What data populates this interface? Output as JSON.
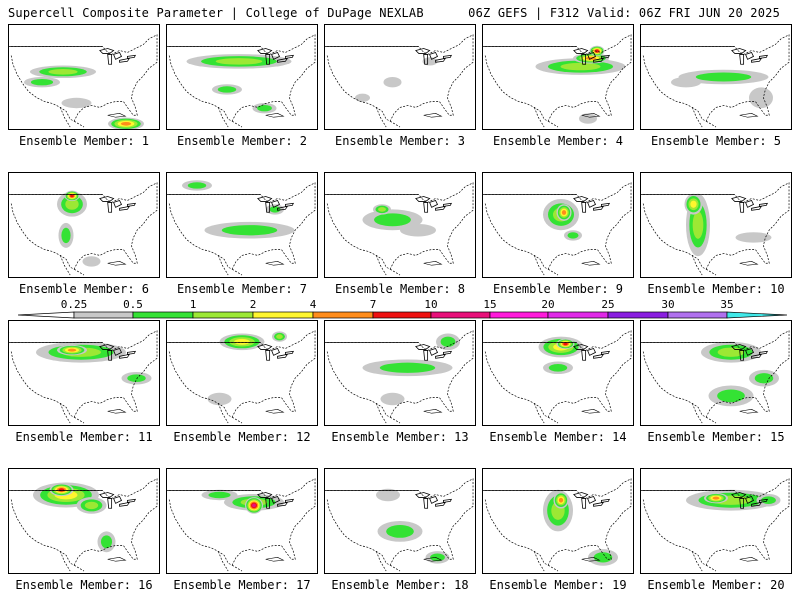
{
  "header": {
    "title": "Supercell Composite Parameter | College of DuPage NEXLAB",
    "run_info": "06Z GEFS | F312 Valid: 06Z FRI JUN 20 2025"
  },
  "colorbar": {
    "labels": [
      "0.25",
      "0.5",
      "1",
      "2",
      "4",
      "7",
      "10",
      "15",
      "20",
      "25",
      "30",
      "35"
    ],
    "colors": [
      "#ffffff",
      "#c8c8c8",
      "#34e234",
      "#9ce834",
      "#fff62e",
      "#ff8c1a",
      "#ee1111",
      "#e8107a",
      "#ff1adb",
      "#e028e8",
      "#8a1ee0",
      "#b070ee",
      "#40e8e8"
    ]
  },
  "panel_label_prefix": "Ensemble Member:",
  "members": [
    {
      "label": "Ensemble Member: 1",
      "intensity": "moderate",
      "blobs": [
        [
          0.36,
          0.45,
          0.22,
          0.06,
          3
        ],
        [
          0.22,
          0.55,
          0.12,
          0.05,
          2
        ],
        [
          0.78,
          0.95,
          0.12,
          0.06,
          5
        ],
        [
          0.45,
          0.75,
          0.1,
          0.05,
          1
        ]
      ]
    },
    {
      "label": "Ensemble Member: 2",
      "intensity": "moderate",
      "blobs": [
        [
          0.48,
          0.35,
          0.35,
          0.07,
          3
        ],
        [
          0.4,
          0.62,
          0.1,
          0.05,
          2
        ],
        [
          0.65,
          0.8,
          0.08,
          0.05,
          2
        ]
      ]
    },
    {
      "label": "Ensemble Member: 3",
      "intensity": "low",
      "blobs": [
        [
          0.45,
          0.55,
          0.06,
          0.05,
          1
        ],
        [
          0.7,
          0.35,
          0.05,
          0.04,
          1
        ],
        [
          0.25,
          0.7,
          0.05,
          0.04,
          1
        ]
      ]
    },
    {
      "label": "Ensemble Member: 4",
      "intensity": "high",
      "blobs": [
        [
          0.65,
          0.4,
          0.3,
          0.08,
          3
        ],
        [
          0.72,
          0.32,
          0.12,
          0.05,
          5
        ],
        [
          0.76,
          0.25,
          0.05,
          0.05,
          6
        ],
        [
          0.7,
          0.9,
          0.06,
          0.05,
          1
        ]
      ]
    },
    {
      "label": "Ensemble Member: 5",
      "intensity": "low",
      "blobs": [
        [
          0.55,
          0.5,
          0.3,
          0.07,
          2
        ],
        [
          0.3,
          0.55,
          0.1,
          0.05,
          1
        ],
        [
          0.8,
          0.7,
          0.08,
          0.1,
          1
        ]
      ]
    },
    {
      "label": "Ensemble Member: 6",
      "intensity": "high",
      "blobs": [
        [
          0.42,
          0.3,
          0.1,
          0.12,
          3
        ],
        [
          0.42,
          0.22,
          0.05,
          0.05,
          6
        ],
        [
          0.38,
          0.6,
          0.05,
          0.12,
          2
        ],
        [
          0.55,
          0.85,
          0.06,
          0.05,
          1
        ]
      ]
    },
    {
      "label": "Ensemble Member: 7",
      "intensity": "moderate",
      "blobs": [
        [
          0.55,
          0.55,
          0.3,
          0.08,
          2
        ],
        [
          0.2,
          0.12,
          0.1,
          0.05,
          2
        ],
        [
          0.72,
          0.35,
          0.06,
          0.05,
          2
        ]
      ]
    },
    {
      "label": "Ensemble Member: 8",
      "intensity": "moderate",
      "blobs": [
        [
          0.45,
          0.45,
          0.2,
          0.1,
          2
        ],
        [
          0.38,
          0.35,
          0.06,
          0.05,
          3
        ],
        [
          0.62,
          0.55,
          0.12,
          0.06,
          1
        ]
      ]
    },
    {
      "label": "Ensemble Member: 9",
      "intensity": "high",
      "blobs": [
        [
          0.52,
          0.4,
          0.12,
          0.15,
          3
        ],
        [
          0.54,
          0.38,
          0.05,
          0.08,
          5
        ],
        [
          0.6,
          0.6,
          0.06,
          0.05,
          2
        ]
      ]
    },
    {
      "label": "Ensemble Member: 10",
      "intensity": "moderate",
      "blobs": [
        [
          0.38,
          0.5,
          0.08,
          0.3,
          3
        ],
        [
          0.35,
          0.3,
          0.06,
          0.1,
          4
        ],
        [
          0.75,
          0.62,
          0.12,
          0.05,
          1
        ]
      ]
    },
    {
      "label": "Ensemble Member: 11",
      "intensity": "high",
      "blobs": [
        [
          0.48,
          0.3,
          0.3,
          0.1,
          3
        ],
        [
          0.42,
          0.28,
          0.1,
          0.05,
          5
        ],
        [
          0.85,
          0.55,
          0.1,
          0.06,
          2
        ]
      ]
    },
    {
      "label": "Ensemble Member: 12",
      "intensity": "moderate",
      "blobs": [
        [
          0.5,
          0.2,
          0.15,
          0.08,
          4
        ],
        [
          0.75,
          0.15,
          0.05,
          0.05,
          3
        ],
        [
          0.35,
          0.75,
          0.08,
          0.06,
          1
        ]
      ]
    },
    {
      "label": "Ensemble Member: 13",
      "intensity": "moderate",
      "blobs": [
        [
          0.55,
          0.45,
          0.3,
          0.08,
          2
        ],
        [
          0.82,
          0.2,
          0.08,
          0.08,
          2
        ],
        [
          0.45,
          0.75,
          0.08,
          0.06,
          1
        ]
      ]
    },
    {
      "label": "Ensemble Member: 14",
      "intensity": "high",
      "blobs": [
        [
          0.52,
          0.25,
          0.15,
          0.1,
          4
        ],
        [
          0.55,
          0.22,
          0.06,
          0.05,
          6
        ],
        [
          0.5,
          0.45,
          0.1,
          0.06,
          2
        ]
      ]
    },
    {
      "label": "Ensemble Member: 15",
      "intensity": "moderate",
      "blobs": [
        [
          0.6,
          0.3,
          0.2,
          0.1,
          3
        ],
        [
          0.6,
          0.72,
          0.15,
          0.1,
          2
        ],
        [
          0.82,
          0.55,
          0.1,
          0.08,
          2
        ]
      ]
    },
    {
      "label": "Ensemble Member: 16",
      "intensity": "high",
      "blobs": [
        [
          0.38,
          0.25,
          0.22,
          0.12,
          4
        ],
        [
          0.35,
          0.2,
          0.08,
          0.06,
          6
        ],
        [
          0.55,
          0.35,
          0.1,
          0.08,
          3
        ],
        [
          0.65,
          0.7,
          0.06,
          0.1,
          2
        ]
      ]
    },
    {
      "label": "Ensemble Member: 17",
      "intensity": "high",
      "blobs": [
        [
          0.58,
          0.32,
          0.2,
          0.08,
          3
        ],
        [
          0.58,
          0.35,
          0.06,
          0.08,
          7
        ],
        [
          0.35,
          0.25,
          0.12,
          0.05,
          2
        ]
      ]
    },
    {
      "label": "Ensemble Member: 18",
      "intensity": "moderate",
      "blobs": [
        [
          0.5,
          0.6,
          0.15,
          0.1,
          2
        ],
        [
          0.42,
          0.25,
          0.08,
          0.06,
          1
        ],
        [
          0.75,
          0.85,
          0.08,
          0.06,
          2
        ]
      ]
    },
    {
      "label": "Ensemble Member: 19",
      "intensity": "high",
      "blobs": [
        [
          0.5,
          0.4,
          0.1,
          0.2,
          3
        ],
        [
          0.52,
          0.3,
          0.05,
          0.08,
          5
        ],
        [
          0.8,
          0.85,
          0.1,
          0.08,
          2
        ]
      ]
    },
    {
      "label": "Ensemble Member: 20",
      "intensity": "moderate",
      "blobs": [
        [
          0.6,
          0.3,
          0.3,
          0.1,
          3
        ],
        [
          0.5,
          0.28,
          0.08,
          0.05,
          5
        ],
        [
          0.85,
          0.3,
          0.08,
          0.06,
          2
        ]
      ]
    }
  ]
}
